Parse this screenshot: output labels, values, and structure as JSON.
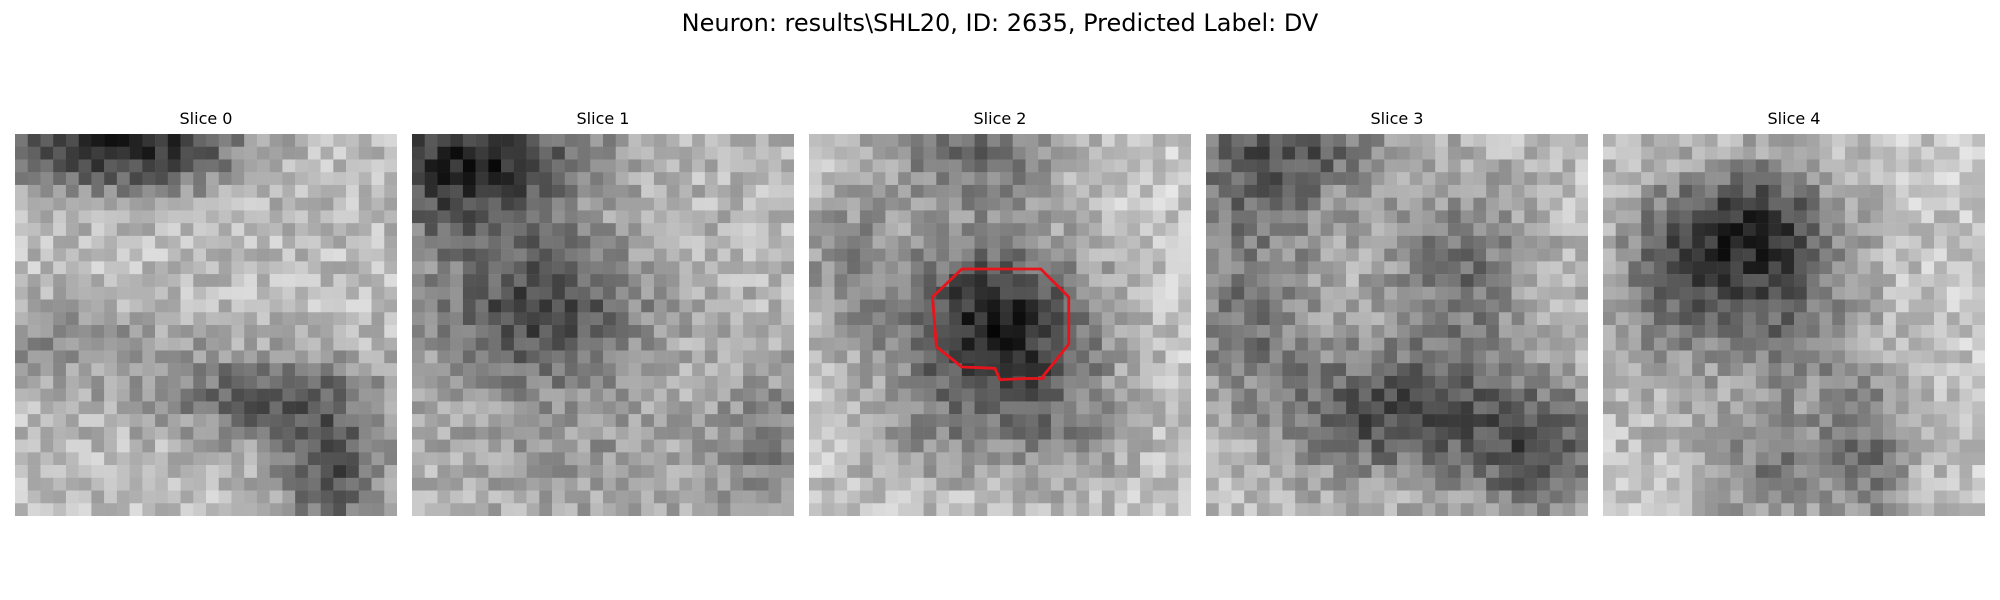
{
  "figure": {
    "suptitle": "Neuron: results\\SHL20, ID: 2635, Predicted Label: DV"
  },
  "panels": [
    {
      "title": "Slice 0",
      "has_roi": false
    },
    {
      "title": "Slice 1",
      "has_roi": false
    },
    {
      "title": "Slice 2",
      "has_roi": true
    },
    {
      "title": "Slice 3",
      "has_roi": false
    },
    {
      "title": "Slice 4",
      "has_roi": false
    }
  ],
  "colors": {
    "roi_outline": "#e8141b",
    "background": "#ffffff"
  },
  "colormap": "grayscale"
}
